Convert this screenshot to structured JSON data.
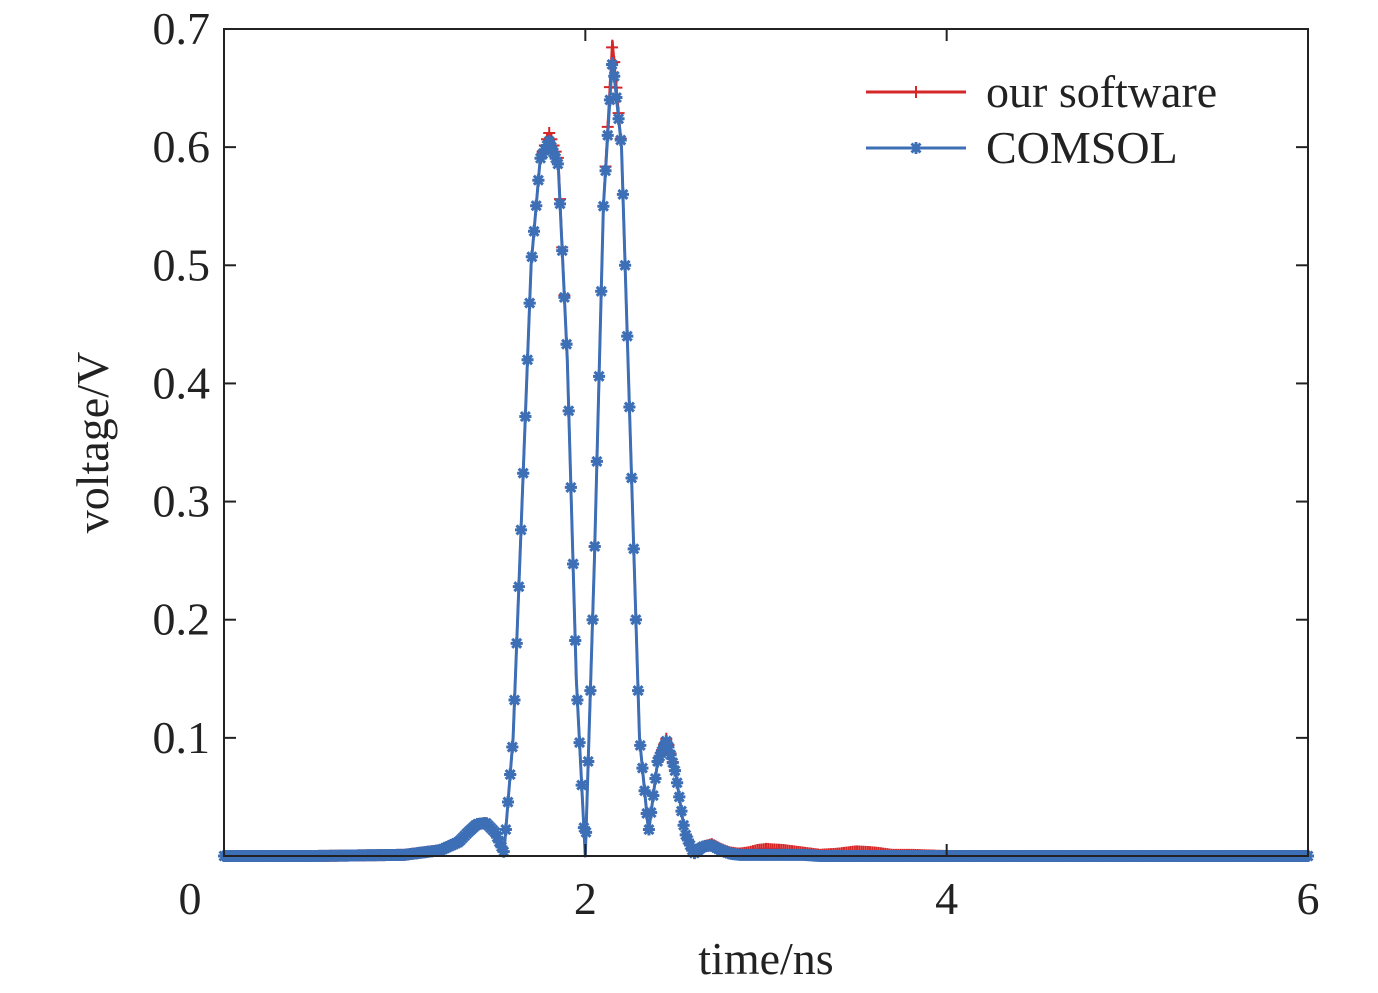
{
  "chart_data": {
    "type": "line",
    "title": "",
    "xlabel": "time/ns",
    "ylabel": "voltage/V",
    "xlim": [
      0,
      6
    ],
    "ylim": [
      0,
      0.7
    ],
    "xticks": [
      0,
      2,
      4,
      6
    ],
    "xtick_labels": [
      "0",
      "2",
      "4",
      "6"
    ],
    "yticks": [
      0.1,
      0.2,
      0.3,
      0.4,
      0.5,
      0.6,
      0.7
    ],
    "ytick_labels": [
      "0.1",
      "0.2",
      "0.3",
      "0.4",
      "0.5",
      "0.6",
      "0.7"
    ],
    "grid": false,
    "legend_position": "top-right",
    "series": [
      {
        "name": "our software",
        "color": "#d62728",
        "marker": "plus",
        "x": [
          0,
          0.5,
          1.0,
          1.2,
          1.3,
          1.35,
          1.4,
          1.45,
          1.5,
          1.55,
          1.6,
          1.65,
          1.7,
          1.75,
          1.8,
          1.85,
          1.9,
          1.95,
          2.0,
          2.05,
          2.1,
          2.15,
          2.2,
          2.25,
          2.3,
          2.35,
          2.4,
          2.45,
          2.5,
          2.55,
          2.6,
          2.65,
          2.7,
          2.75,
          2.8,
          2.85,
          2.9,
          2.95,
          3.0,
          3.1,
          3.2,
          3.3,
          3.4,
          3.5,
          3.6,
          3.7,
          3.8,
          4.0,
          4.5,
          5.0,
          6.0
        ],
        "y": [
          0,
          0,
          0.001,
          0.005,
          0.012,
          0.02,
          0.027,
          0.028,
          0.02,
          0.003,
          0.1,
          0.3,
          0.5,
          0.59,
          0.612,
          0.59,
          0.42,
          0.15,
          0.0,
          0.25,
          0.55,
          0.69,
          0.6,
          0.35,
          0.1,
          0.02,
          0.08,
          0.1,
          0.07,
          0.02,
          0.002,
          0.008,
          0.01,
          0.006,
          0.003,
          0.002,
          0.003,
          0.005,
          0.006,
          0.005,
          0.003,
          0.001,
          0.002,
          0.004,
          0.003,
          0.001,
          0.001,
          0.0,
          0.0,
          0.0,
          0.0
        ]
      },
      {
        "name": "COMSOL",
        "color": "#3d6fb6",
        "marker": "asterisk",
        "x": [
          0,
          0.5,
          1.0,
          1.2,
          1.3,
          1.35,
          1.4,
          1.45,
          1.5,
          1.55,
          1.6,
          1.65,
          1.7,
          1.75,
          1.8,
          1.85,
          1.9,
          1.95,
          2.0,
          2.05,
          2.1,
          2.15,
          2.2,
          2.25,
          2.3,
          2.35,
          2.4,
          2.45,
          2.5,
          2.55,
          2.6,
          2.65,
          2.7,
          2.75,
          2.8,
          2.85,
          2.9,
          2.95,
          3.0,
          3.1,
          3.2,
          3.3,
          3.4,
          3.5,
          3.6,
          3.7,
          3.8,
          4.0,
          4.5,
          5.0,
          6.0
        ],
        "y": [
          0,
          0,
          0.001,
          0.005,
          0.012,
          0.02,
          0.027,
          0.028,
          0.02,
          0.003,
          0.1,
          0.3,
          0.5,
          0.59,
          0.605,
          0.585,
          0.42,
          0.15,
          0.0,
          0.25,
          0.55,
          0.675,
          0.6,
          0.35,
          0.1,
          0.02,
          0.08,
          0.098,
          0.07,
          0.02,
          0.002,
          0.008,
          0.009,
          0.005,
          0.002,
          0.001,
          0.001,
          0.001,
          0.001,
          0.001,
          0.001,
          0.0,
          0.0,
          0.0,
          0.0,
          0.0,
          0.0,
          0.0,
          0.0,
          0.0,
          0.0
        ]
      }
    ]
  }
}
